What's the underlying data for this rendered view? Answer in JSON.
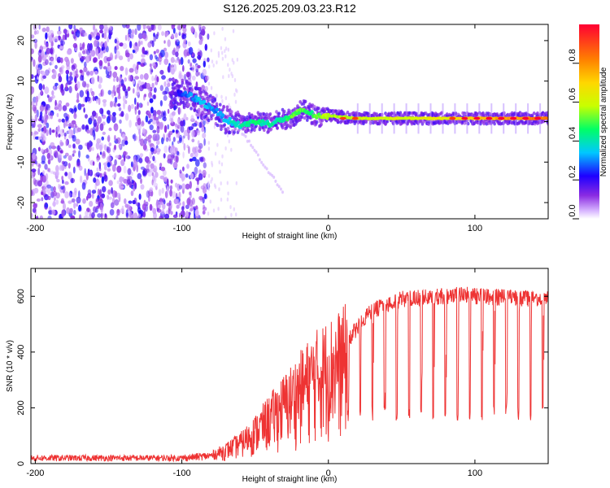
{
  "title": "S126.2025.209.03.23.R12",
  "chart_data": [
    {
      "type": "heatmap",
      "title": "S126.2025.209.03.23.R12",
      "xlabel": "Height of straight line (km)",
      "ylabel": "Frequency (Hz)",
      "xlim": [
        -203,
        150
      ],
      "ylim": [
        -24,
        24
      ],
      "x_ticks": [
        -200,
        -100,
        0,
        100
      ],
      "y_ticks": [
        -20,
        -10,
        0,
        10,
        20
      ],
      "colorbar": {
        "label": "Normalized spectral amplitude",
        "range": [
          0,
          1
        ],
        "ticks": [
          0.0,
          0.2,
          0.4,
          0.6,
          0.8
        ],
        "tick_labels": [
          "0.0",
          "0.2",
          "0.4",
          "0.6",
          "0.8"
        ],
        "colormap": [
          "#ffffff",
          "#c9a0ff",
          "#8a2be2",
          "#1e00ff",
          "#00c8ff",
          "#00ff66",
          "#c8ff00",
          "#ffd700",
          "#ff8000",
          "#ff0033"
        ]
      },
      "ridge": {
        "x": [
          -105,
          -95,
          -85,
          -78,
          -70,
          -60,
          -50,
          -40,
          -32,
          -25,
          -18,
          -12,
          -5,
          0,
          20,
          60,
          100,
          150
        ],
        "frequency": [
          7,
          6.5,
          4.5,
          3,
          0.5,
          -1,
          0,
          -0.5,
          0.5,
          1,
          3,
          2,
          1,
          1.5,
          0.8,
          0.8,
          0.8,
          0.8
        ],
        "amplitude": [
          0.15,
          0.3,
          0.35,
          0.3,
          0.35,
          0.4,
          0.45,
          0.4,
          0.4,
          0.5,
          0.5,
          0.45,
          0.55,
          0.55,
          0.6,
          0.62,
          0.7,
          0.85
        ]
      },
      "noise_region_x": [
        -203,
        -82
      ],
      "grid": false
    },
    {
      "type": "line",
      "xlabel": "Height of straight line (km)",
      "ylabel": "SNR (10 * v/v)",
      "xlim": [
        -203,
        150
      ],
      "ylim": [
        0,
        700
      ],
      "x_ticks": [
        -200,
        -100,
        0,
        100
      ],
      "y_ticks": [
        0,
        200,
        400,
        600
      ],
      "line_color": "#ee3333",
      "envelope": {
        "x": [
          -203,
          -100,
          -80,
          -70,
          -60,
          -50,
          -40,
          -30,
          -20,
          -10,
          0,
          10,
          20,
          30,
          50,
          80,
          90,
          100,
          150
        ],
        "snr": [
          25,
          25,
          35,
          60,
          90,
          140,
          200,
          260,
          320,
          380,
          420,
          450,
          520,
          580,
          620,
          630,
          640,
          630,
          620
        ]
      },
      "periodic_dips": {
        "start_x": 13,
        "spacing_km": 8.3,
        "floor": 150
      },
      "grid": false
    }
  ]
}
